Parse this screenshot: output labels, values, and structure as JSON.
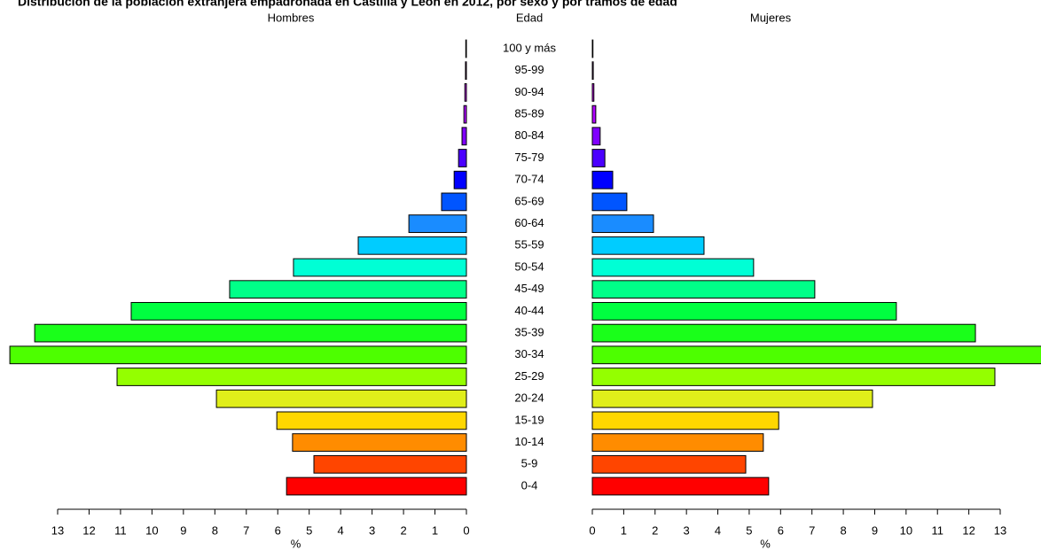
{
  "chart_data": {
    "type": "pyramid",
    "title": "Distribución de la población extranjera empadronada en Castilla y León en 2012, por sexo y por tramos de edad",
    "category_label": "Edad",
    "categories": [
      "0-4",
      "5-9",
      "10-14",
      "15-19",
      "20-24",
      "25-29",
      "30-34",
      "35-39",
      "40-44",
      "45-49",
      "50-54",
      "55-59",
      "60-64",
      "65-69",
      "70-74",
      "75-79",
      "80-84",
      "85-89",
      "90-94",
      "95-99",
      "100 y más"
    ],
    "colors": [
      "#ff0000",
      "#ff4500",
      "#ff8c00",
      "#ffd700",
      "#e0ee1a",
      "#94ff00",
      "#4dff00",
      "#1aff1a",
      "#00ff40",
      "#00ff88",
      "#00ffd5",
      "#00ccff",
      "#1a8cff",
      "#0055ff",
      "#0000ff",
      "#4b00ff",
      "#8000ff",
      "#b000ff",
      "#d000ff",
      "#ee00ff",
      "#ff00ff"
    ],
    "series": [
      {
        "name": "Hombres",
        "values": [
          5.72,
          4.85,
          5.53,
          6.03,
          7.95,
          11.11,
          14.52,
          13.73,
          10.66,
          7.53,
          5.5,
          3.44,
          1.83,
          0.79,
          0.39,
          0.25,
          0.14,
          0.08,
          0.05,
          0.03,
          0.02
        ]
      },
      {
        "name": "Mujeres",
        "values": [
          5.62,
          4.89,
          5.45,
          5.94,
          8.93,
          12.83,
          14.5,
          12.21,
          9.69,
          7.09,
          5.14,
          3.56,
          1.95,
          1.1,
          0.65,
          0.4,
          0.25,
          0.11,
          0.05,
          0.03,
          0.02
        ]
      }
    ],
    "xlabel": "%",
    "xlim": [
      0,
      13
    ],
    "xticks": [
      0,
      1,
      2,
      3,
      4,
      5,
      6,
      7,
      8,
      9,
      10,
      11,
      12,
      13
    ]
  }
}
